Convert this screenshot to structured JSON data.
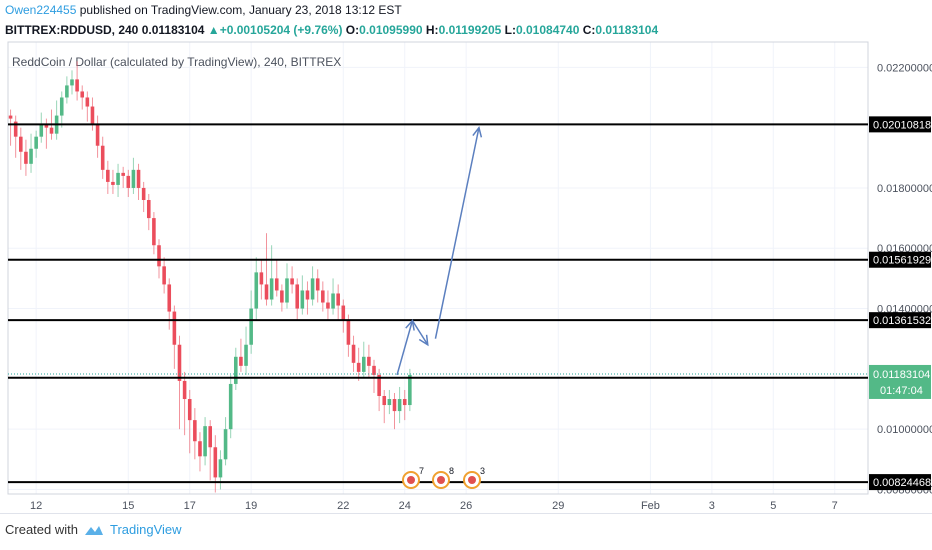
{
  "header": {
    "user": "Owen224455",
    "published": " published on TradingView.com, January 23, 2018 13:12 EST",
    "symbol": "BITTREX:RDDUSD, 240",
    "last": "0.01183104",
    "change_arrow": "▲",
    "change": "+0.00105204 (+9.76%)",
    "o_label": "O:",
    "o": "0.01095990",
    "h_label": "H:",
    "h": "0.01199205",
    "l_label": "L:",
    "l": "0.01084740",
    "c_label": "C:",
    "c": "0.01183104"
  },
  "footer": {
    "created_with": "Created with",
    "brand": "TradingView"
  },
  "colors": {
    "up": "#26a69a",
    "down": "#ef5350",
    "up_light": "#53b987",
    "down_light": "#eb4d5c",
    "arrow": "#5b7fbf",
    "line": "#000000",
    "grid": "#f0f3fa"
  },
  "chart_data": {
    "type": "candlestick",
    "title": "ReddCoin / Dollar (calculated by TradingView), 240, BITTREX",
    "ylim": [
      0.0076,
      0.0224
    ],
    "y_ticks": [
      "0.02200000",
      "0.01800000",
      "0.01600000",
      "0.01400000",
      "0.01000000",
      "0.00800000"
    ],
    "x_ticks": [
      {
        "label": "12",
        "i": 5
      },
      {
        "label": "15",
        "i": 23
      },
      {
        "label": "17",
        "i": 35
      },
      {
        "label": "19",
        "i": 47
      },
      {
        "label": "22",
        "i": 65
      },
      {
        "label": "24",
        "i": 77
      },
      {
        "label": "26",
        "i": 89
      },
      {
        "label": "29",
        "i": 107
      },
      {
        "label": "Feb",
        "i": 125
      },
      {
        "label": "3",
        "i": 137
      },
      {
        "label": "5",
        "i": 149
      },
      {
        "label": "7",
        "i": 161
      }
    ],
    "x_count": 168,
    "horizontal_levels": [
      {
        "value": 0.02010818,
        "label": "0.02010818"
      },
      {
        "value": 0.01561929,
        "label": "0.01561929"
      },
      {
        "value": 0.01361532,
        "label": "0.01361532"
      },
      {
        "value": 0.01170677,
        "label": "0.01170677"
      },
      {
        "value": 0.00824468,
        "label": "0.00824468"
      }
    ],
    "price_tag": {
      "value": 0.01183104,
      "label": "0.01183104",
      "timer": "01:47:04"
    },
    "projection_arrow": [
      {
        "i": 75.5,
        "v": 0.0118
      },
      {
        "i": 78.5,
        "v": 0.0136
      },
      {
        "i": 81.5,
        "v": 0.0128
      },
      {
        "i": 83,
        "v": 0.013
      },
      {
        "i": 91.5,
        "v": 0.02
      }
    ],
    "candles": [
      [
        0.0204,
        0.0203,
        0.0206,
        0.0194
      ],
      [
        0.0202,
        0.0197,
        0.0204,
        0.019
      ],
      [
        0.0197,
        0.0192,
        0.02,
        0.0186
      ],
      [
        0.0192,
        0.0188,
        0.0196,
        0.0184
      ],
      [
        0.0188,
        0.0193,
        0.0198,
        0.0185
      ],
      [
        0.0193,
        0.0197,
        0.0199,
        0.019
      ],
      [
        0.0197,
        0.0201,
        0.0205,
        0.0195
      ],
      [
        0.0201,
        0.02,
        0.0203,
        0.0193
      ],
      [
        0.02,
        0.0198,
        0.0206,
        0.0196
      ],
      [
        0.0198,
        0.0204,
        0.0209,
        0.0196
      ],
      [
        0.0204,
        0.021,
        0.0212,
        0.02
      ],
      [
        0.021,
        0.0214,
        0.0217,
        0.0208
      ],
      [
        0.0214,
        0.0216,
        0.0219,
        0.0211
      ],
      [
        0.0216,
        0.0212,
        0.0222,
        0.0209
      ],
      [
        0.0212,
        0.021,
        0.0214,
        0.0206
      ],
      [
        0.021,
        0.0207,
        0.0212,
        0.0202
      ],
      [
        0.0207,
        0.0201,
        0.021,
        0.0199
      ],
      [
        0.0201,
        0.0194,
        0.0204,
        0.019
      ],
      [
        0.0194,
        0.0186,
        0.0197,
        0.0183
      ],
      [
        0.0186,
        0.0182,
        0.0189,
        0.0178
      ],
      [
        0.0182,
        0.0181,
        0.0186,
        0.0178
      ],
      [
        0.0181,
        0.0185,
        0.0188,
        0.0177
      ],
      [
        0.0185,
        0.0184,
        0.0187,
        0.018
      ],
      [
        0.0184,
        0.018,
        0.0186,
        0.0177
      ],
      [
        0.018,
        0.0186,
        0.019,
        0.0178
      ],
      [
        0.0186,
        0.018,
        0.0188,
        0.0176
      ],
      [
        0.018,
        0.0176,
        0.0182,
        0.0172
      ],
      [
        0.0176,
        0.017,
        0.0178,
        0.0166
      ],
      [
        0.017,
        0.0161,
        0.0172,
        0.0158
      ],
      [
        0.0161,
        0.0154,
        0.0163,
        0.015
      ],
      [
        0.0154,
        0.0148,
        0.0157,
        0.0145
      ],
      [
        0.0148,
        0.0139,
        0.015,
        0.0133
      ],
      [
        0.0139,
        0.0128,
        0.0141,
        0.012
      ],
      [
        0.0128,
        0.0116,
        0.0131,
        0.01
      ],
      [
        0.0116,
        0.011,
        0.0119,
        0.0098
      ],
      [
        0.011,
        0.0103,
        0.0113,
        0.0092
      ],
      [
        0.0103,
        0.0096,
        0.0107,
        0.009
      ],
      [
        0.0096,
        0.0091,
        0.0099,
        0.0086
      ],
      [
        0.0091,
        0.0101,
        0.0104,
        0.0088
      ],
      [
        0.0101,
        0.0094,
        0.0103,
        0.0083
      ],
      [
        0.0094,
        0.0084,
        0.0098,
        0.0079
      ],
      [
        0.0084,
        0.009,
        0.0093,
        0.008
      ],
      [
        0.009,
        0.01,
        0.0104,
        0.0088
      ],
      [
        0.01,
        0.0115,
        0.0118,
        0.0097
      ],
      [
        0.0115,
        0.0124,
        0.0127,
        0.0113
      ],
      [
        0.0124,
        0.0121,
        0.013,
        0.0119
      ],
      [
        0.0121,
        0.0128,
        0.0134,
        0.0118
      ],
      [
        0.0128,
        0.014,
        0.0146,
        0.0125
      ],
      [
        0.014,
        0.0152,
        0.0157,
        0.0136
      ],
      [
        0.0152,
        0.0148,
        0.0156,
        0.0143
      ],
      [
        0.0148,
        0.0143,
        0.0165,
        0.0141
      ],
      [
        0.0143,
        0.015,
        0.0161,
        0.0141
      ],
      [
        0.015,
        0.0146,
        0.0156,
        0.0144
      ],
      [
        0.0146,
        0.0142,
        0.0148,
        0.0139
      ],
      [
        0.0142,
        0.015,
        0.0155,
        0.014
      ],
      [
        0.015,
        0.0148,
        0.0154,
        0.0145
      ],
      [
        0.0148,
        0.014,
        0.015,
        0.0136
      ],
      [
        0.014,
        0.0146,
        0.0151,
        0.0138
      ],
      [
        0.0146,
        0.0143,
        0.0149,
        0.0138
      ],
      [
        0.0143,
        0.015,
        0.0154,
        0.0141
      ],
      [
        0.015,
        0.0146,
        0.0153,
        0.0142
      ],
      [
        0.0146,
        0.0142,
        0.0149,
        0.0139
      ],
      [
        0.0142,
        0.014,
        0.0146,
        0.0136
      ],
      [
        0.014,
        0.0145,
        0.015,
        0.0138
      ],
      [
        0.0145,
        0.0141,
        0.0148,
        0.0136
      ],
      [
        0.0141,
        0.0136,
        0.0143,
        0.0132
      ],
      [
        0.0136,
        0.0128,
        0.0138,
        0.0124
      ],
      [
        0.0128,
        0.0122,
        0.0131,
        0.0119
      ],
      [
        0.0122,
        0.0119,
        0.0127,
        0.0116
      ],
      [
        0.0119,
        0.0124,
        0.0129,
        0.0117
      ],
      [
        0.0124,
        0.0121,
        0.0128,
        0.0117
      ],
      [
        0.0121,
        0.0118,
        0.0123,
        0.0112
      ],
      [
        0.0118,
        0.0111,
        0.012,
        0.0106
      ],
      [
        0.0111,
        0.0108,
        0.0113,
        0.0102
      ],
      [
        0.0108,
        0.011,
        0.0113,
        0.0105
      ],
      [
        0.011,
        0.0106,
        0.0112,
        0.01
      ],
      [
        0.0106,
        0.011,
        0.0114,
        0.0102
      ],
      [
        0.011,
        0.0108,
        0.0113,
        0.0103
      ],
      [
        0.0108,
        0.0118,
        0.012,
        0.0106
      ]
    ]
  }
}
